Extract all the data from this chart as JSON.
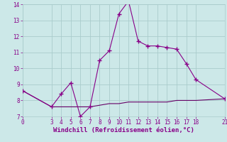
{
  "xlabel": "Windchill (Refroidissement éolien,°C)",
  "background_color": "#cce8e8",
  "grid_color": "#aacccc",
  "line_color": "#880088",
  "line2_color": "#660066",
  "line1_x": [
    0,
    3,
    4,
    5,
    6,
    7,
    8,
    9,
    10,
    11,
    12,
    13,
    14,
    15,
    16,
    17,
    18,
    21
  ],
  "line1_y": [
    8.6,
    7.6,
    8.4,
    9.1,
    7.0,
    7.6,
    10.5,
    11.1,
    13.4,
    14.2,
    11.7,
    11.4,
    11.4,
    11.3,
    11.2,
    10.3,
    9.3,
    8.1
  ],
  "line2_x": [
    0,
    3,
    4,
    5,
    6,
    7,
    8,
    9,
    10,
    11,
    12,
    13,
    14,
    15,
    16,
    17,
    18,
    21
  ],
  "line2_y": [
    8.6,
    7.6,
    7.6,
    7.6,
    7.6,
    7.6,
    7.7,
    7.8,
    7.8,
    7.9,
    7.9,
    7.9,
    7.9,
    7.9,
    8.0,
    8.0,
    8.0,
    8.1
  ],
  "xlim": [
    0,
    21
  ],
  "ylim": [
    7,
    14
  ],
  "xticks": [
    0,
    3,
    4,
    5,
    6,
    7,
    8,
    9,
    10,
    11,
    12,
    13,
    14,
    15,
    16,
    17,
    18,
    21
  ],
  "yticks": [
    7,
    8,
    9,
    10,
    11,
    12,
    13,
    14
  ],
  "marker": "+",
  "linewidth": 0.8,
  "fontsize_label": 6.5,
  "fontsize_ticks": 5.5
}
